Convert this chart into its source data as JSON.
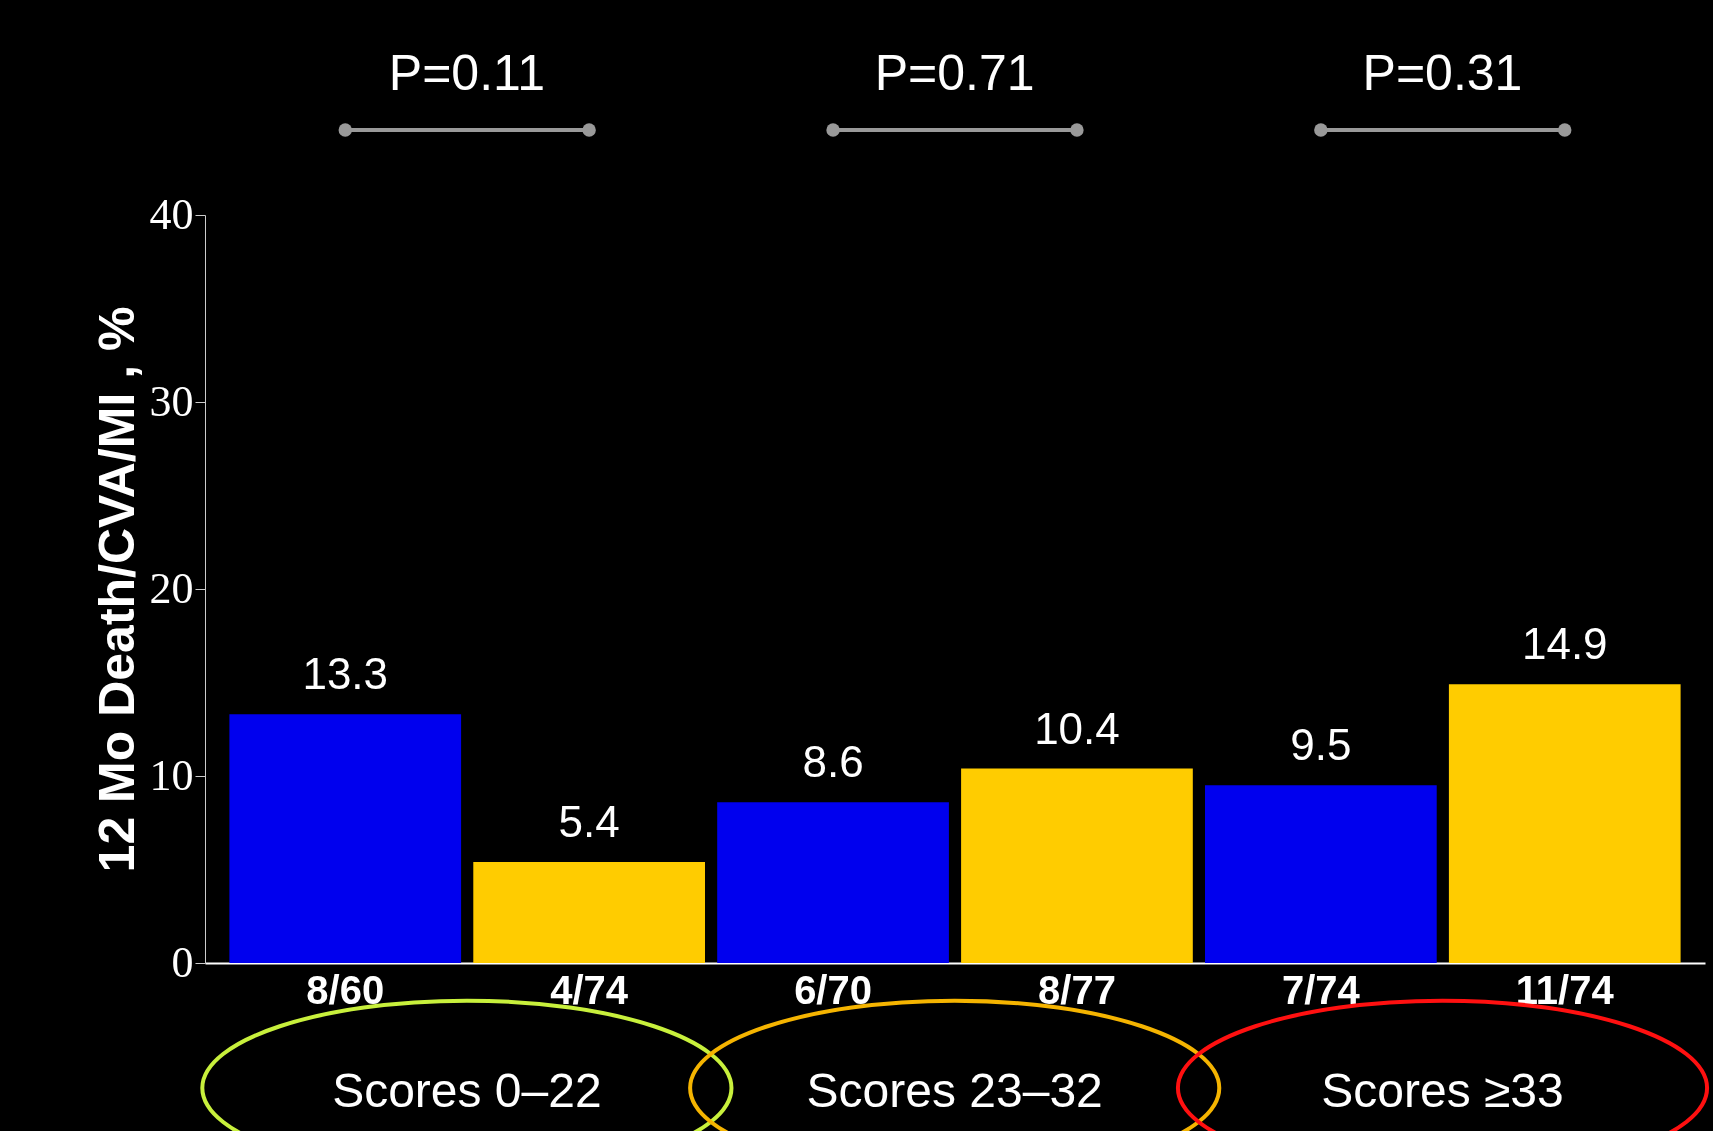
{
  "chart_data": {
    "type": "bar",
    "ylabel": "12 Mo Death/CVA/MI , %",
    "categories": [
      "8/60",
      "4/74",
      "6/70",
      "8/77",
      "7/74",
      "11/74"
    ],
    "values": [
      13.3,
      5.4,
      8.6,
      10.4,
      9.5,
      14.9
    ],
    "colors": [
      "#0000ee",
      "#ffcc00",
      "#0000ee",
      "#ffcc00",
      "#0000ee",
      "#ffcc00"
    ],
    "ylim": [
      0,
      40
    ],
    "yticks": [
      0,
      10,
      20,
      30,
      40
    ],
    "grid": false,
    "data_labels": true,
    "annotations": [
      "P=0.11",
      "P=0.71",
      "P=0.31",
      "Scores 0–22",
      "Scores 23–32",
      "Scores ≥33"
    ]
  }
}
